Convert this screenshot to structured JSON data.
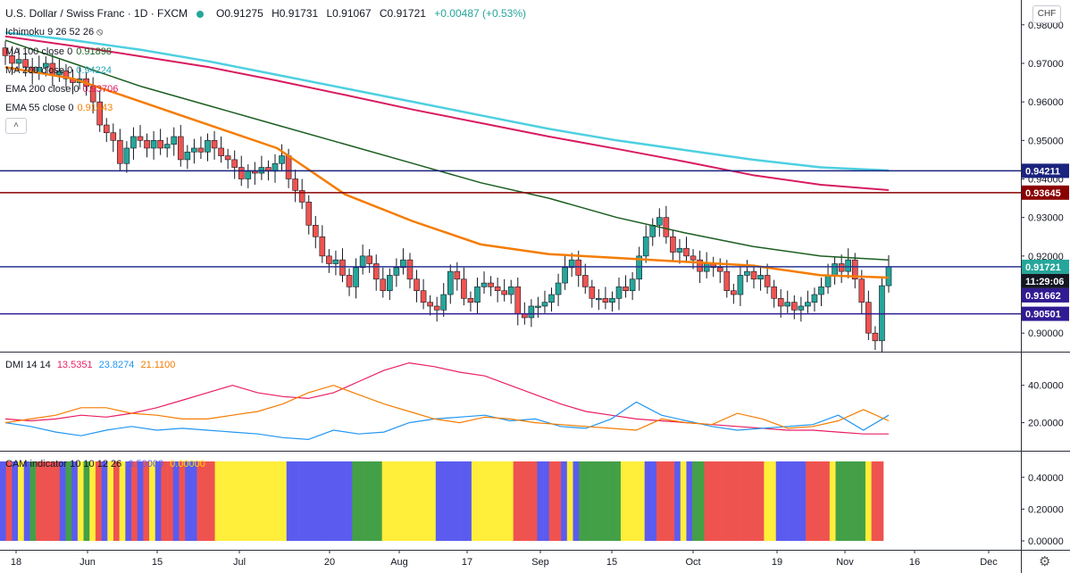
{
  "header": {
    "symbol": "U.S. Dollar / Swiss Franc · 1D · FXCM",
    "open": "O0.91275",
    "high": "H0.91731",
    "low": "L0.91067",
    "close": "C0.91721",
    "change": "+0.00487 (+0.53%)"
  },
  "currency": "CHF",
  "indicators": {
    "ichimoku": {
      "label": "Ichimoku 9 26 52 26",
      "color": "#7d8ca3"
    },
    "ma100": {
      "label": "MA 100 close 0",
      "value": "0.91898",
      "color": "#1b5e20"
    },
    "ma200": {
      "label": "MA 200 close 0",
      "value": "0.94224",
      "color": "#4dd0e1"
    },
    "ema200": {
      "label": "EMA 200 close 0",
      "value": "0.93706",
      "color": "#d81b60"
    },
    "ema55": {
      "label": "EMA 55 close 0",
      "value": "0.91443",
      "color": "#f57c00"
    }
  },
  "dmi_panel": {
    "label": "DMI 14 14",
    "values": [
      "13.5351",
      "23.8274",
      "21.1100"
    ],
    "colors": [
      "#e91e63",
      "#2196f3",
      "#f57c00"
    ]
  },
  "cam_panel": {
    "label": "CAM indicator 10 10 12 26",
    "values": [
      "0.50000",
      "0.00000"
    ]
  },
  "chart_data": [
    {
      "type": "candlestick",
      "panel": "price",
      "x_ticks": [
        "18",
        "Jun",
        "15",
        "Jul",
        "20",
        "Aug",
        "17",
        "Sep",
        "15",
        "Oct",
        "19",
        "Nov",
        "16",
        "Dec"
      ],
      "y_ticks": [
        "0.98000",
        "0.97000",
        "0.96000",
        "0.95000",
        "0.94000",
        "0.93000",
        "0.92000",
        "0.91000",
        "0.90000"
      ],
      "ylim": [
        0.8975,
        0.9825
      ],
      "horizontal_lines": [
        {
          "value": 0.94211,
          "label": "0.94211",
          "color": "#1a237e"
        },
        {
          "value": 0.93645,
          "label": "0.93645",
          "color": "#8b0000"
        },
        {
          "value": 0.91721,
          "label": "0.91721",
          "color": "#283593"
        },
        {
          "value": 0.90501,
          "label": "0.90501",
          "color": "#311b92"
        }
      ],
      "price_tags": [
        {
          "value": 0.91721,
          "label": "0.91721",
          "color": "#26a69a"
        },
        {
          "label": "11:29:06",
          "color": "#131722"
        },
        {
          "value": 0.91662,
          "label": "0.91662",
          "color": "#311b92"
        }
      ],
      "closes": [
        0.972,
        0.97,
        0.971,
        0.969,
        0.9675,
        0.969,
        0.97,
        0.967,
        0.968,
        0.966,
        0.965,
        0.966,
        0.964,
        0.96,
        0.954,
        0.952,
        0.95,
        0.944,
        0.948,
        0.951,
        0.95,
        0.948,
        0.95,
        0.948,
        0.949,
        0.951,
        0.945,
        0.947,
        0.948,
        0.947,
        0.95,
        0.948,
        0.946,
        0.945,
        0.943,
        0.94,
        0.942,
        0.9415,
        0.943,
        0.942,
        0.944,
        0.946,
        0.94,
        0.937,
        0.934,
        0.928,
        0.925,
        0.92,
        0.918,
        0.919,
        0.915,
        0.912,
        0.917,
        0.92,
        0.918,
        0.914,
        0.911,
        0.915,
        0.917,
        0.919,
        0.914,
        0.911,
        0.908,
        0.907,
        0.906,
        0.91,
        0.916,
        0.914,
        0.909,
        0.908,
        0.912,
        0.913,
        0.912,
        0.911,
        0.91,
        0.912,
        0.905,
        0.904,
        0.907,
        0.907,
        0.908,
        0.91,
        0.913,
        0.917,
        0.919,
        0.915,
        0.912,
        0.909,
        0.909,
        0.908,
        0.909,
        0.912,
        0.911,
        0.914,
        0.92,
        0.925,
        0.928,
        0.93,
        0.925,
        0.921,
        0.922,
        0.92,
        0.919,
        0.916,
        0.918,
        0.917,
        0.916,
        0.911,
        0.91,
        0.915,
        0.916,
        0.914,
        0.915,
        0.912,
        0.909,
        0.907,
        0.908,
        0.906,
        0.907,
        0.908,
        0.91,
        0.912,
        0.915,
        0.918,
        0.916,
        0.919,
        0.914,
        0.908,
        0.9,
        0.898,
        0.9123,
        0.9172
      ],
      "ma100": [
        0.976,
        0.97,
        0.964,
        0.959,
        0.954,
        0.949,
        0.944,
        0.939,
        0.935,
        0.93,
        0.926,
        0.9225,
        0.92,
        0.919
      ],
      "ma200": [
        0.978,
        0.976,
        0.9735,
        0.9705,
        0.967,
        0.9635,
        0.96,
        0.9565,
        0.953,
        0.95,
        0.9475,
        0.945,
        0.943,
        0.9422
      ],
      "ema200": [
        0.977,
        0.9745,
        0.9718,
        0.969,
        0.9655,
        0.9618,
        0.958,
        0.9545,
        0.951,
        0.9478,
        0.9445,
        0.941,
        0.9385,
        0.9371
      ],
      "ema55": [
        0.969,
        0.966,
        0.96,
        0.954,
        0.948,
        0.936,
        0.929,
        0.923,
        0.9205,
        0.9195,
        0.9185,
        0.9175,
        0.915,
        0.9144
      ]
    },
    {
      "type": "line",
      "panel": "DMI",
      "y_ticks": [
        "40.0000",
        "20.0000"
      ],
      "ylim": [
        5,
        58
      ],
      "series": [
        {
          "name": "13.5351",
          "color": "#e91e63",
          "values": [
            22,
            21,
            22,
            24,
            23,
            25,
            28,
            32,
            36,
            40,
            36,
            34,
            33,
            36,
            42,
            48,
            52,
            50,
            47,
            45,
            40,
            35,
            30,
            26,
            24,
            22,
            21,
            20,
            19,
            18,
            17,
            16,
            16,
            15,
            14,
            14
          ]
        },
        {
          "name": "23.8274",
          "color": "#2196f3",
          "values": [
            20,
            18,
            15,
            13,
            16,
            18,
            16,
            17,
            16,
            15,
            14,
            12,
            11,
            16,
            14,
            15,
            20,
            22,
            23,
            24,
            21,
            22,
            18,
            17,
            22,
            31,
            24,
            21,
            18,
            16,
            17,
            18,
            19,
            24,
            16,
            24
          ]
        },
        {
          "name": "21.1100",
          "color": "#f57c00",
          "values": [
            20,
            22,
            24,
            28,
            28,
            25,
            24,
            22,
            22,
            24,
            26,
            30,
            36,
            40,
            35,
            30,
            26,
            22,
            20,
            23,
            22,
            20,
            19,
            18,
            17,
            16,
            22,
            20,
            19,
            25,
            22,
            17,
            18,
            21,
            27,
            21
          ]
        }
      ]
    },
    {
      "type": "bar",
      "panel": "CAM",
      "y_ticks": [
        "0.40000",
        "0.20000",
        "0.00000"
      ],
      "ylim": [
        0,
        0.5
      ],
      "bar_value": 0.5,
      "colors": {
        "red": "#ef5350",
        "blue": "#5b5bf0",
        "yellow": "#ffee3a",
        "green": "#43a047"
      },
      "sequence": "BRBYBGRRRRBGBYGYRBYRYBRBRYBRRBRBBRRRYYYYYYYYYYYYBBBBBBBBBBBGGGGGYYYYYYYYYBBBBBBYYYYYYYRRRRBBRRBYBGGGGGGGYYYYBBRRRBYBGGRRRRRRRRRRYYBBBBBRRRRYGGGGGYRR"
    }
  ]
}
